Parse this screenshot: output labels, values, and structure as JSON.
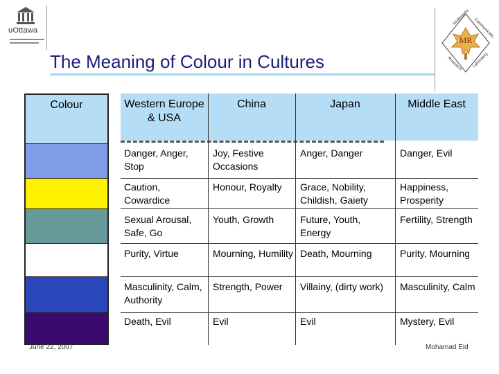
{
  "title": "The Meaning of Colour in Cultures",
  "logo_left": {
    "name": "uOttawa"
  },
  "table": {
    "colour_header": "Colour",
    "headers": [
      "Western Europe & USA",
      "China",
      "Japan",
      "Middle East"
    ],
    "rows": [
      {
        "swatch": "#7f9ce8",
        "cells": [
          "Danger, Anger, Stop",
          "Joy, Festive Occasions",
          "Anger, Danger",
          "Danger, Evil"
        ]
      },
      {
        "swatch": "#fff200",
        "cells": [
          "Caution, Cowardice",
          "Honour, Royalty",
          "Grace, Nobility, Childish, Gaiety",
          "Happiness, Prosperity"
        ]
      },
      {
        "swatch": "#669999",
        "cells": [
          "Sexual Arousal, Safe, Go",
          "Youth, Growth",
          "Future, Youth, Energy",
          "Fertility, Strength"
        ]
      },
      {
        "swatch": "#ffffff",
        "cells": [
          "Purity, Virtue",
          "Mourning, Humility",
          "Death, Mourning",
          "Purity, Mourning"
        ]
      },
      {
        "swatch": "#2a46b8",
        "cells": [
          "Masculinity, Calm, Authority",
          "Strength, Power",
          "Villainy, (dirty work)",
          "Masculinity, Calm"
        ]
      },
      {
        "swatch": "#3a0a6e",
        "cells": [
          "Death, Evil",
          "Evil",
          "Evil",
          "Mystery, Evil"
        ]
      }
    ]
  },
  "footer": {
    "date": "June 22, 2007",
    "author": "Mohamad Eid"
  },
  "colors": {
    "title": "#1e1e7a",
    "header_bg": "#b5ddf5"
  }
}
